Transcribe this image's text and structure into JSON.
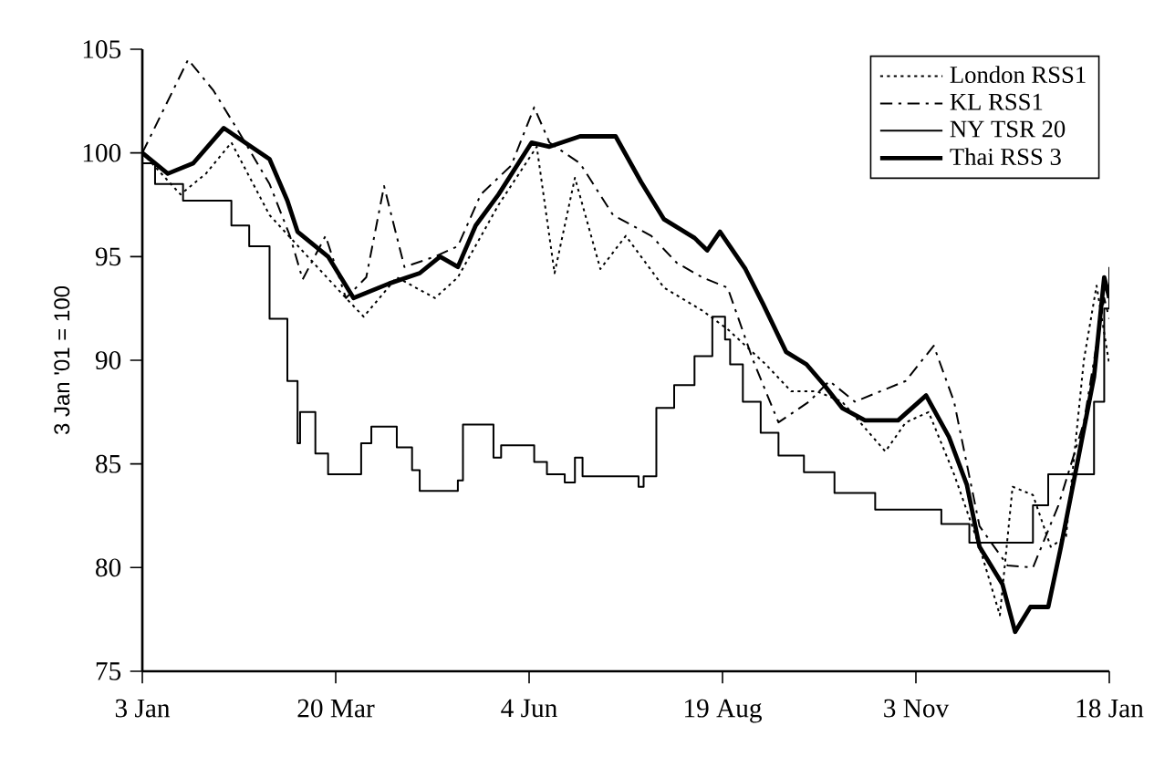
{
  "chart_data": {
    "type": "line",
    "ylabel": "3 Jan '01 = 100",
    "xlim": [
      "2001-01-03",
      "2002-01-18"
    ],
    "xticks": [
      {
        "value": "2001-01-03",
        "label": "3 Jan"
      },
      {
        "value": "2001-03-20",
        "label": "20 Mar"
      },
      {
        "value": "2001-06-04",
        "label": "4 Jun"
      },
      {
        "value": "2001-08-19",
        "label": "19 Aug"
      },
      {
        "value": "2001-11-03",
        "label": "3 Nov"
      },
      {
        "value": "2002-01-18",
        "label": "18 Jan"
      }
    ],
    "ylim": [
      75,
      105
    ],
    "yticks": [
      75,
      80,
      85,
      90,
      95,
      100,
      105
    ],
    "legend": "top right",
    "grid": false,
    "series": [
      {
        "name": "London RSS1",
        "color": "#000000",
        "line_style": "dotted",
        "x": [
          "2001-01-03",
          "2001-01-18",
          "2001-01-28",
          "2001-02-07",
          "2001-02-22",
          "2001-03-09",
          "2001-03-24",
          "2001-03-31",
          "2001-04-13",
          "2001-04-28",
          "2001-05-07",
          "2001-05-23",
          "2001-06-07",
          "2001-06-14",
          "2001-06-22",
          "2001-07-02",
          "2001-07-12",
          "2001-07-27",
          "2001-08-11",
          "2001-08-21",
          "2001-09-05",
          "2001-09-15",
          "2001-09-25",
          "2001-10-05",
          "2001-10-22",
          "2001-10-30",
          "2001-11-08",
          "2001-11-18",
          "2001-11-28",
          "2001-12-06",
          "2001-12-11",
          "2001-12-19",
          "2001-12-26",
          "2002-01-01",
          "2002-01-08",
          "2002-01-13",
          "2002-01-18"
        ],
        "values": [
          100,
          98,
          99,
          100.5,
          97,
          95,
          93,
          92.1,
          94,
          93,
          94,
          97.5,
          100.3,
          94.2,
          98.8,
          94.4,
          96,
          93.5,
          92.4,
          91.5,
          89.8,
          88.5,
          88.5,
          88,
          85.6,
          87,
          87.5,
          84.5,
          81,
          77.7,
          83.9,
          83.5,
          81,
          81.5,
          90,
          93.6,
          89.8
        ]
      },
      {
        "name": "KL RSS1",
        "color": "#000000",
        "line_style": "dashdot",
        "x": [
          "2001-01-03",
          "2001-01-21",
          "2001-01-31",
          "2001-02-10",
          "2001-02-22",
          "2001-03-02",
          "2001-03-07",
          "2001-03-16",
          "2001-03-24",
          "2001-04-01",
          "2001-04-08",
          "2001-04-16",
          "2001-04-28",
          "2001-05-07",
          "2001-05-16",
          "2001-05-28",
          "2001-06-06",
          "2001-06-12",
          "2001-06-24",
          "2001-07-07",
          "2001-07-22",
          "2001-08-01",
          "2001-08-11",
          "2001-08-21",
          "2001-08-31",
          "2001-09-10",
          "2001-09-22",
          "2001-09-30",
          "2001-10-10",
          "2001-10-30",
          "2001-11-10",
          "2001-11-18",
          "2001-11-28",
          "2001-12-09",
          "2001-12-19",
          "2001-12-29",
          "2002-01-08",
          "2002-01-16",
          "2002-01-18"
        ],
        "values": [
          100,
          104.5,
          103,
          101,
          98.5,
          96,
          93.9,
          96,
          93,
          94,
          98.4,
          94.5,
          95,
          95.5,
          98,
          99.4,
          102.2,
          100.5,
          99.5,
          97,
          96,
          94.7,
          94,
          93.5,
          90,
          87,
          88,
          89,
          88,
          89,
          90.7,
          88,
          82,
          80.1,
          80,
          83,
          87,
          93,
          92
        ]
      },
      {
        "name": "NY TSR 20",
        "color": "#000000",
        "type": "step",
        "line_style": "solid",
        "x": [
          "2001-01-03",
          "2001-01-08",
          "2001-01-19",
          "2001-02-07",
          "2001-02-14",
          "2001-02-22",
          "2001-03-01",
          "2001-03-05",
          "2001-03-06",
          "2001-03-12",
          "2001-03-17",
          "2001-03-30",
          "2001-04-03",
          "2001-04-13",
          "2001-04-19",
          "2001-04-22",
          "2001-05-07",
          "2001-05-09",
          "2001-05-21",
          "2001-05-24",
          "2001-06-06",
          "2001-06-11",
          "2001-06-18",
          "2001-06-22",
          "2001-06-25",
          "2001-07-17",
          "2001-07-19",
          "2001-07-24",
          "2001-07-31",
          "2001-08-08",
          "2001-08-15",
          "2001-08-20",
          "2001-08-22",
          "2001-08-27",
          "2001-09-03",
          "2001-09-10",
          "2001-09-20",
          "2001-10-02",
          "2001-10-18",
          "2001-11-13",
          "2001-11-24",
          "2001-12-19",
          "2001-12-25",
          "2002-01-08",
          "2002-01-12",
          "2002-01-16",
          "2002-01-18"
        ],
        "values": [
          99.5,
          98.5,
          97.7,
          96.5,
          95.5,
          92,
          89,
          86,
          87.5,
          85.5,
          84.5,
          86,
          86.8,
          85.8,
          84.7,
          83.7,
          84.2,
          86.9,
          85.3,
          85.9,
          85.1,
          84.5,
          84.1,
          85.3,
          84.4,
          83.9,
          84.4,
          87.7,
          88.8,
          90.2,
          92.1,
          91,
          89.8,
          88,
          86.5,
          85.4,
          84.6,
          83.6,
          82.8,
          82.1,
          81.2,
          83,
          84.5,
          84.5,
          88,
          92.5,
          94.5
        ]
      },
      {
        "name": "Thai RSS 3",
        "color": "#000000",
        "line_style": "solid",
        "x": [
          "2001-01-03",
          "2001-01-13",
          "2001-01-23",
          "2001-02-04",
          "2001-02-22",
          "2001-03-01",
          "2001-03-05",
          "2001-03-17",
          "2001-03-27",
          "2001-04-10",
          "2001-04-22",
          "2001-04-30",
          "2001-05-07",
          "2001-05-14",
          "2001-05-23",
          "2001-06-05",
          "2001-06-12",
          "2001-06-24",
          "2001-07-08",
          "2001-07-18",
          "2001-07-27",
          "2001-08-08",
          "2001-08-13",
          "2001-08-18",
          "2001-08-28",
          "2001-09-04",
          "2001-09-13",
          "2001-09-21",
          "2001-09-28",
          "2001-10-05",
          "2001-10-14",
          "2001-10-27",
          "2001-11-07",
          "2001-11-16",
          "2001-11-23",
          "2001-11-28",
          "2001-12-07",
          "2001-12-12",
          "2001-12-18",
          "2001-12-25",
          "2001-12-30",
          "2002-01-06",
          "2002-01-12",
          "2002-01-16",
          "2002-01-18"
        ],
        "values": [
          100,
          99,
          99.5,
          101.2,
          99.7,
          97.7,
          96.2,
          95,
          93,
          93.7,
          94.2,
          95,
          94.5,
          96.5,
          98,
          100.5,
          100.3,
          100.8,
          100.8,
          98.6,
          96.8,
          95.9,
          95.3,
          96.2,
          94.4,
          92.7,
          90.4,
          89.8,
          88.8,
          87.7,
          87.1,
          87.1,
          88.3,
          86.3,
          84,
          81,
          79.2,
          76.9,
          78.1,
          78.1,
          81,
          85.4,
          89.2,
          94,
          93
        ]
      }
    ]
  }
}
